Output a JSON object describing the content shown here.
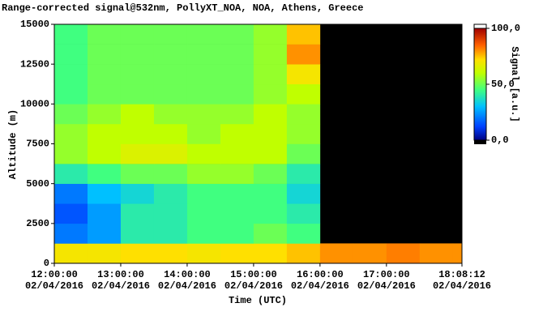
{
  "chart_data": {
    "type": "heatmap",
    "title": "Range-corrected signal@532nm, PollyXT_NOA, NOA, Athens, Greece",
    "xlabel": "Time (UTC)",
    "ylabel": "Altitude (m)",
    "colorbar_label": "Signal [a.u.]",
    "xlim": [
      "12:00:00",
      "18:08:12"
    ],
    "xticks": [
      {
        "time": "12:00:00",
        "date": "02/04/2016"
      },
      {
        "time": "13:00:00",
        "date": "02/04/2016"
      },
      {
        "time": "14:00:00",
        "date": "02/04/2016"
      },
      {
        "time": "15:00:00",
        "date": "02/04/2016"
      },
      {
        "time": "16:00:00",
        "date": "02/04/2016"
      },
      {
        "time": "17:00:00",
        "date": "02/04/2016"
      },
      {
        "time": "18:08:12",
        "date": "02/04/2016"
      }
    ],
    "ylim": [
      0,
      15000
    ],
    "yticks": [
      0,
      2500,
      5000,
      7500,
      10000,
      12500,
      15000
    ],
    "clim": [
      0,
      100
    ],
    "cticks": [
      {
        "value": 0,
        "label": "0,0"
      },
      {
        "value": 50,
        "label": "50,0"
      },
      {
        "value": 100,
        "label": "100,0"
      }
    ],
    "x": [
      "12:00:00",
      "12:30:00",
      "13:00:00",
      "13:30:00",
      "14:00:00",
      "14:30:00",
      "15:00:00",
      "15:30:00",
      "16:00:00",
      "16:30:00",
      "17:00:00",
      "17:30:00",
      "18:00:00"
    ],
    "y": [
      0,
      1250,
      2500,
      3750,
      5000,
      6250,
      7500,
      8750,
      10000,
      11250,
      12500,
      13750
    ],
    "z": [
      [
        70,
        70,
        72,
        72,
        70,
        72,
        72,
        75,
        80,
        80,
        82,
        80,
        80
      ],
      [
        20,
        25,
        40,
        40,
        45,
        45,
        50,
        45,
        null,
        null,
        null,
        null,
        null
      ],
      [
        15,
        25,
        40,
        40,
        45,
        45,
        45,
        40,
        null,
        null,
        null,
        null,
        null
      ],
      [
        20,
        30,
        35,
        40,
        45,
        45,
        45,
        35,
        null,
        null,
        null,
        null,
        null
      ],
      [
        40,
        45,
        50,
        50,
        55,
        55,
        50,
        40,
        null,
        null,
        null,
        null,
        null
      ],
      [
        55,
        60,
        65,
        65,
        60,
        60,
        60,
        50,
        null,
        null,
        null,
        null,
        null
      ],
      [
        55,
        60,
        60,
        60,
        55,
        60,
        60,
        55,
        null,
        null,
        null,
        null,
        null
      ],
      [
        50,
        55,
        60,
        55,
        55,
        55,
        60,
        55,
        null,
        null,
        null,
        null,
        null
      ],
      [
        45,
        50,
        50,
        50,
        50,
        50,
        55,
        60,
        null,
        null,
        null,
        null,
        null
      ],
      [
        45,
        50,
        50,
        50,
        50,
        50,
        55,
        70,
        null,
        null,
        null,
        null,
        null
      ],
      [
        45,
        50,
        50,
        50,
        50,
        50,
        55,
        80,
        null,
        null,
        null,
        null,
        null
      ],
      [
        45,
        50,
        50,
        50,
        50,
        50,
        55,
        75,
        null,
        null,
        null,
        null,
        null
      ]
    ]
  }
}
